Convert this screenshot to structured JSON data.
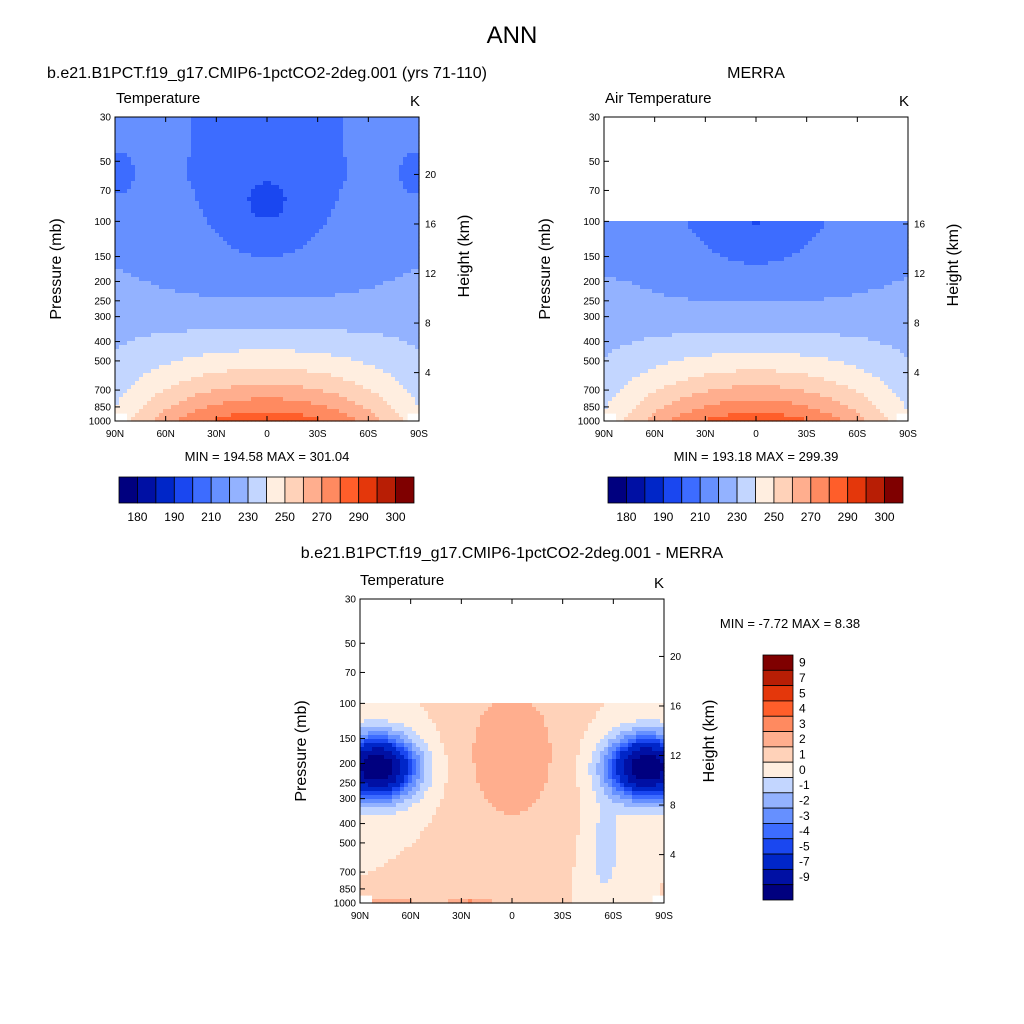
{
  "figure": {
    "title": "ANN"
  },
  "chart_data": [
    {
      "type": "heatmap",
      "panel": "model",
      "title": "b.e21.B1PCT.f19_g17.CMIP6-1pctCO2-2deg.001 (yrs 71-110)",
      "variable_label": "Temperature",
      "units": "K",
      "ylabel": "Pressure (mb)",
      "ylabel_right": "Height (km)",
      "x_ticks": [
        "90N",
        "60N",
        "30N",
        "0",
        "30S",
        "60S",
        "90S"
      ],
      "y_ticks": [
        "30",
        "50",
        "70",
        "100",
        "150",
        "200",
        "250",
        "300",
        "400",
        "500",
        "700",
        "850",
        "1000"
      ],
      "height_ticks": [
        "20",
        "16",
        "12",
        "8",
        "4"
      ],
      "top_pressure": 30,
      "min_max": "MIN = 194.58  MAX = 301.04",
      "levels": [
        180,
        185,
        190,
        200,
        210,
        220,
        230,
        240,
        250,
        260,
        270,
        280,
        290,
        295,
        300
      ],
      "colorbar_ticks": [
        "180",
        "190",
        "210",
        "230",
        "250",
        "270",
        "290",
        "300"
      ],
      "min": 194.58,
      "max": 301.04
    },
    {
      "type": "heatmap",
      "panel": "obs",
      "title": "MERRA",
      "variable_label": "Air Temperature",
      "units": "K",
      "ylabel": "Pressure (mb)",
      "ylabel_right": "Height (km)",
      "x_ticks": [
        "90N",
        "60N",
        "30N",
        "0",
        "30S",
        "60S",
        "90S"
      ],
      "y_ticks": [
        "30",
        "50",
        "70",
        "100",
        "150",
        "200",
        "250",
        "300",
        "400",
        "500",
        "700",
        "850",
        "1000"
      ],
      "height_ticks": [
        "16",
        "12",
        "8",
        "4"
      ],
      "top_pressure": 100,
      "min_max": "MIN = 193.18  MAX = 299.39",
      "levels": [
        180,
        185,
        190,
        200,
        210,
        220,
        230,
        240,
        250,
        260,
        270,
        280,
        290,
        295,
        300
      ],
      "colorbar_ticks": [
        "180",
        "190",
        "210",
        "230",
        "250",
        "270",
        "290",
        "300"
      ],
      "min": 193.18,
      "max": 299.39
    },
    {
      "type": "heatmap",
      "panel": "diff",
      "title": "b.e21.B1PCT.f19_g17.CMIP6-1pctCO2-2deg.001 - MERRA",
      "variable_label": "Temperature",
      "units": "K",
      "ylabel": "Pressure (mb)",
      "ylabel_right": "Height (km)",
      "x_ticks": [
        "90N",
        "60N",
        "30N",
        "0",
        "30S",
        "60S",
        "90S"
      ],
      "y_ticks": [
        "30",
        "50",
        "70",
        "100",
        "150",
        "200",
        "250",
        "300",
        "400",
        "500",
        "700",
        "850",
        "1000"
      ],
      "height_ticks": [
        "20",
        "16",
        "12",
        "8",
        "4"
      ],
      "top_pressure": 100,
      "min_max": "MIN =  -7.72  MAX =   8.38",
      "levels": [
        -9,
        -7,
        -5,
        -4,
        -3,
        -2,
        -1,
        0,
        1,
        2,
        3,
        4,
        5,
        7,
        9
      ],
      "colorbar_ticks": [
        "9",
        "7",
        "5",
        "4",
        "3",
        "2",
        "1",
        "0",
        "-1",
        "-2",
        "-3",
        "-4",
        "-5",
        "-7",
        "-9"
      ],
      "min": -7.72,
      "max": 8.38
    }
  ],
  "colors": {
    "palette16": [
      "#00007f",
      "#0010a4",
      "#0026c8",
      "#1a47f0",
      "#3d6cff",
      "#6690ff",
      "#93b2ff",
      "#c3d6ff",
      "#ffeee0",
      "#ffd2b9",
      "#ffae8e",
      "#ff8a60",
      "#ff5e2a",
      "#e4370b",
      "#b81e05",
      "#7f0000"
    ]
  }
}
